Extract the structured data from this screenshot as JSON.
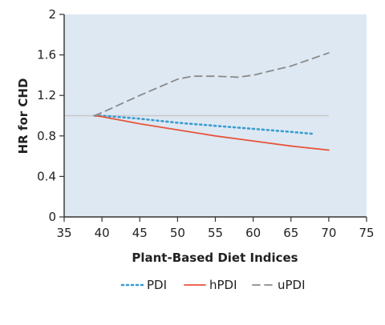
{
  "chart_data": {
    "type": "line",
    "xlabel": "Plant-Based Diet Indices",
    "ylabel": "HR for CHD",
    "xlim": [
      35,
      75
    ],
    "ylim": [
      0,
      2
    ],
    "xticks": [
      35,
      40,
      45,
      50,
      55,
      60,
      65,
      70,
      75
    ],
    "yticks": [
      0,
      0.4,
      0.8,
      1.2,
      1.6,
      2
    ],
    "ytick_labels": [
      "0",
      "0.4",
      "0.8",
      "1.2",
      "1.6",
      "2"
    ],
    "grid": false,
    "legend_position": "bottom",
    "plot_background": "#dde8f3",
    "reference_line": {
      "y": 1.0,
      "x_range": [
        35,
        70
      ],
      "color": "#c8c8c8"
    },
    "series": [
      {
        "name": "PDI",
        "style": "dotted",
        "color": "#3b9ccf",
        "x": [
          39,
          40,
          45,
          50,
          55,
          60,
          65,
          68
        ],
        "y": [
          1.0,
          1.0,
          0.97,
          0.93,
          0.9,
          0.87,
          0.84,
          0.82
        ]
      },
      {
        "name": "hPDI",
        "style": "solid",
        "color": "#e8553a",
        "x": [
          39,
          40,
          45,
          50,
          55,
          60,
          65,
          70
        ],
        "y": [
          1.0,
          0.99,
          0.92,
          0.86,
          0.8,
          0.75,
          0.7,
          0.66
        ]
      },
      {
        "name": "uPDI",
        "style": "dashed",
        "color": "#8a8a8a",
        "x": [
          39,
          40,
          45,
          50,
          52,
          55,
          58,
          60,
          65,
          70
        ],
        "y": [
          1.0,
          1.03,
          1.2,
          1.36,
          1.39,
          1.39,
          1.38,
          1.4,
          1.49,
          1.62
        ]
      }
    ]
  }
}
